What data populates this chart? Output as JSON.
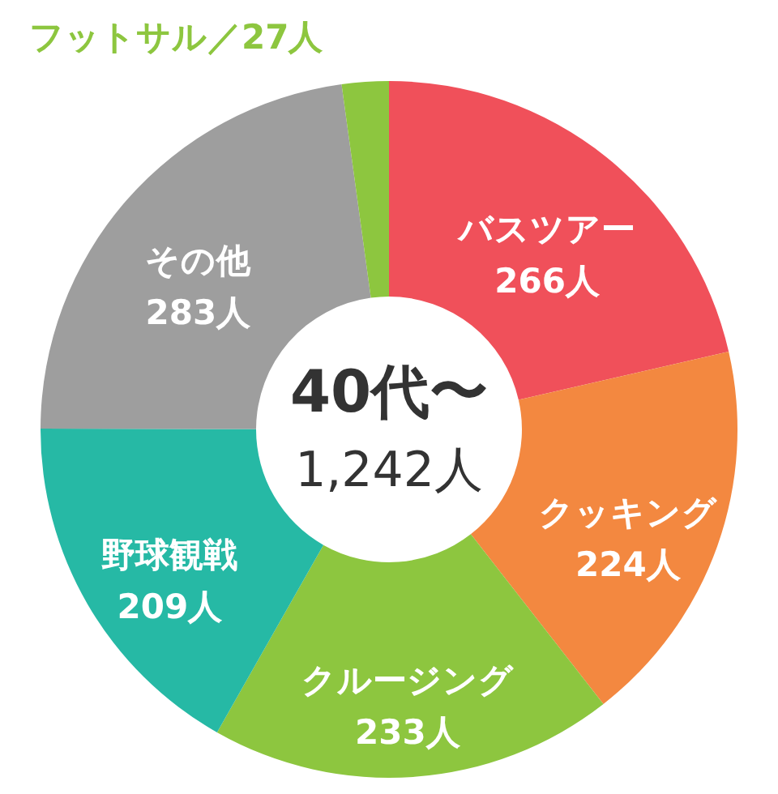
{
  "chart_data": {
    "type": "donut",
    "title": "40代〜",
    "subtitle": "1,242人",
    "categories": [
      "バスツアー",
      "クッキング",
      "クルージング",
      "野球観戦",
      "その他",
      "フットサル"
    ],
    "values": [
      266,
      224,
      233,
      209,
      283,
      27
    ],
    "colors": [
      "#f0505a",
      "#f38840",
      "#8dc63f",
      "#26b9a5",
      "#9e9e9e",
      "#8dc63f"
    ],
    "value_labels": [
      "266人",
      "224人",
      "233人",
      "209人",
      "283人",
      "／27人"
    ]
  }
}
